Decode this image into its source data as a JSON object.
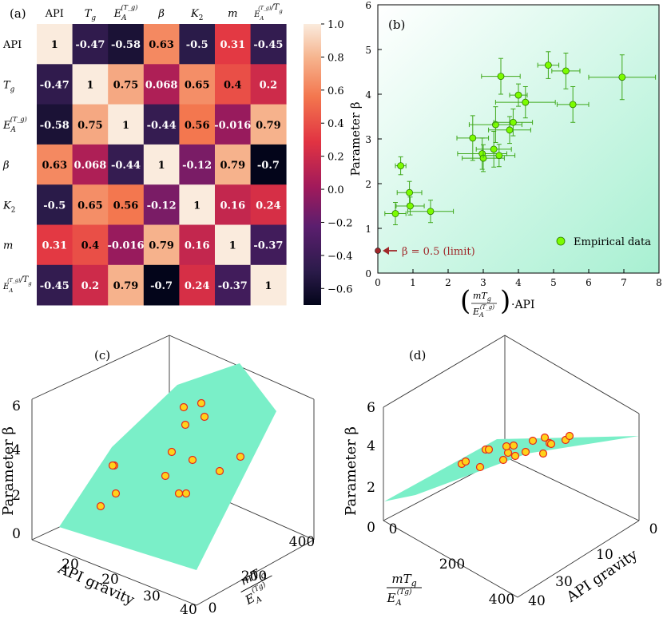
{
  "chart_data": [
    {
      "panel": "(a)",
      "type": "heatmap",
      "labels": [
        "API",
        "T_g",
        "E_A^(T_g)",
        "β",
        "K_2",
        "m",
        "E_A^(T_g)/T_g"
      ],
      "label_parts": [
        {
          "base": "API"
        },
        {
          "base": "T",
          "sub": "g"
        },
        {
          "base": "E",
          "sub": "A",
          "sup": "(T_g)"
        },
        {
          "base": "β"
        },
        {
          "base": "K",
          "sub": "2"
        },
        {
          "base": "m"
        },
        {
          "base": "E",
          "sub": "A",
          "sup": "(T_g)",
          "tail": "/T",
          "tailsub": "g"
        }
      ],
      "matrix": [
        [
          1,
          -0.47,
          -0.58,
          0.63,
          -0.5,
          0.31,
          -0.45
        ],
        [
          -0.47,
          1,
          0.75,
          0.068,
          0.65,
          0.4,
          0.2
        ],
        [
          -0.58,
          0.75,
          1,
          -0.44,
          0.56,
          -0.016,
          0.79
        ],
        [
          0.63,
          0.068,
          -0.44,
          1,
          -0.12,
          0.79,
          -0.7
        ],
        [
          -0.5,
          0.65,
          0.56,
          -0.12,
          1,
          0.16,
          0.24
        ],
        [
          0.31,
          0.4,
          -0.016,
          0.79,
          0.16,
          1,
          -0.37
        ],
        [
          -0.45,
          0.2,
          0.79,
          -0.7,
          0.24,
          -0.37,
          1
        ]
      ],
      "cell_text": [
        [
          "1",
          "-0.47",
          "-0.58",
          "0.63",
          "-0.5",
          "0.31",
          "-0.45"
        ],
        [
          "-0.47",
          "1",
          "0.75",
          "0.068",
          "0.65",
          "0.4",
          "0.2"
        ],
        [
          "-0.58",
          "0.75",
          "1",
          "-0.44",
          "0.56",
          "-0.016",
          "0.79"
        ],
        [
          "0.63",
          "0.068",
          "-0.44",
          "1",
          "-0.12",
          "0.79",
          "-0.7"
        ],
        [
          "-0.5",
          "0.65",
          "0.56",
          "-0.12",
          "1",
          "0.16",
          "0.24"
        ],
        [
          "0.31",
          "0.4",
          "-0.016",
          "0.79",
          "0.16",
          "1",
          "-0.37"
        ],
        [
          "-0.45",
          "0.2",
          "0.79",
          "-0.7",
          "0.24",
          "-0.37",
          "1"
        ]
      ],
      "colorbar": {
        "range": [
          -0.7,
          1.0
        ],
        "ticks": [
          1.0,
          0.8,
          0.6,
          0.4,
          0.2,
          0.0,
          -0.2,
          -0.4,
          -0.6
        ],
        "tick_labels": [
          "1.0",
          "0.8",
          "0.6",
          "0.4",
          "0.2",
          "0.0",
          "−0.2",
          "−0.4",
          "−0.6"
        ],
        "colormap": "rocket"
      }
    },
    {
      "panel": "(b)",
      "type": "scatter",
      "series_name": "Empirical data",
      "marker_color": "#7cfc00",
      "x": [
        0.5,
        0.65,
        0.9,
        0.92,
        1.5,
        2.7,
        2.97,
        3.0,
        3.3,
        3.35,
        3.45,
        3.5,
        3.75,
        3.85,
        4.0,
        4.2,
        4.85,
        5.35,
        5.55,
        6.95
      ],
      "y": [
        1.33,
        2.4,
        1.8,
        1.5,
        1.38,
        3.02,
        2.67,
        2.57,
        2.77,
        3.32,
        2.63,
        4.4,
        3.2,
        3.37,
        3.98,
        3.82,
        4.65,
        4.52,
        3.77,
        4.38
      ],
      "xerr": [
        0.3,
        0.15,
        0.35,
        0.4,
        0.65,
        0.45,
        0.7,
        0.6,
        0.5,
        0.75,
        0.45,
        0.55,
        0.6,
        0.55,
        0.25,
        0.85,
        0.3,
        0.4,
        0.45,
        0.95
      ],
      "yerr": [
        0.25,
        0.2,
        0.25,
        0.2,
        0.25,
        0.5,
        0.35,
        0.3,
        0.4,
        0.4,
        0.25,
        0.4,
        0.3,
        0.3,
        0.25,
        0.35,
        0.3,
        0.4,
        0.4,
        0.5
      ],
      "limit_point": {
        "x": 0,
        "y": 0.5,
        "label": "β = 0.5 (limit)",
        "color": "#a0282a"
      },
      "xlabel": "(mT_g / E_A^(T_g))·API",
      "xlabel_parts": {
        "num": "mT",
        "num_sub": "g",
        "den": "E",
        "den_sub": "A",
        "den_sup": "(T_g)",
        "tail": "·API"
      },
      "ylabel": "Parameter β",
      "xlim": [
        0,
        8
      ],
      "ylim": [
        0,
        6
      ],
      "xticks": [
        0,
        1,
        2,
        3,
        4,
        5,
        6,
        7,
        8
      ],
      "yticks": [
        0,
        1,
        2,
        3,
        4,
        5,
        6
      ],
      "legend": "lower-right"
    },
    {
      "panel": "(c)",
      "type": "scatter3d",
      "surface": "fitted plane",
      "zlabel": "Parameter β",
      "xlabel": "API gravity",
      "ylabel": "mT_g / E_A^(T_g)",
      "zticks": [
        "0",
        "2",
        "4",
        "6"
      ],
      "xticks": [
        "20",
        "20",
        "30",
        "40"
      ],
      "yticks": [
        "0",
        "200",
        "400"
      ],
      "points_count": 15
    },
    {
      "panel": "(d)",
      "type": "scatter3d",
      "surface": "fitted plane",
      "zlabel": "Parameter β",
      "xlabel": "mT_g / E_A^(T_g)",
      "ylabel": "API gravity",
      "zticks": [
        "0",
        "2",
        "4",
        "6"
      ],
      "xticks": [
        "0",
        "200",
        "400"
      ],
      "yticks": [
        "0",
        "10",
        "30",
        "40"
      ],
      "points_count": 18
    }
  ]
}
